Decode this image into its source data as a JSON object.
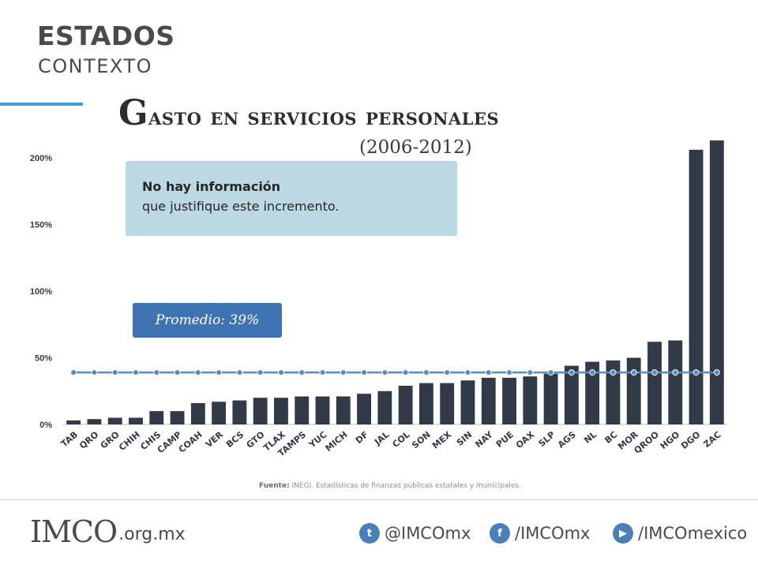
{
  "header": {
    "section_title": "ESTADOS",
    "section_subtitle": "CONTEXTO"
  },
  "title": {
    "first_letter": "G",
    "rest": "asto en servicios personales",
    "period": "(2006-2012)"
  },
  "info_box": {
    "line1": "No hay información",
    "line2": "que justifique este incremento."
  },
  "average_box": {
    "label": "Promedio: 39%"
  },
  "source": {
    "label": "Fuente:",
    "text": " INEGI. Estadísticas de finanzas públicas estatales y municipales."
  },
  "footer": {
    "logo": "IMCO",
    "domain": ".org.mx",
    "twitter": "@IMCOmx",
    "facebook": "/IMCOmx",
    "youtube": "/IMCOmexico"
  },
  "colors": {
    "bar": "#333a47",
    "average_line": "#5b8ac0",
    "accent": "#3aa0d9"
  },
  "chart_data": {
    "type": "bar",
    "categories": [
      "TAB",
      "QRO",
      "GRO",
      "CHIH",
      "CHIS",
      "CAMP",
      "COAH",
      "VER",
      "BCS",
      "GTO",
      "TLAX",
      "TAMPS",
      "YUC",
      "MICH",
      "DF",
      "JAL",
      "COL",
      "SON",
      "MEX",
      "SIN",
      "NAY",
      "PUE",
      "OAX",
      "SLP",
      "AGS",
      "NL",
      "BC",
      "MOR",
      "QROO",
      "HGO",
      "DGO",
      "ZAC"
    ],
    "values": [
      3,
      4,
      5,
      5,
      10,
      10,
      16,
      17,
      18,
      20,
      20,
      21,
      21,
      21,
      23,
      25,
      29,
      31,
      31,
      33,
      35,
      35,
      36,
      38,
      44,
      47,
      48,
      50,
      62,
      63,
      206,
      213
    ],
    "average": 39,
    "ylim": [
      0,
      200
    ],
    "yticks": [
      "0%",
      "50%",
      "100%",
      "150%",
      "200%"
    ],
    "grid": false
  }
}
